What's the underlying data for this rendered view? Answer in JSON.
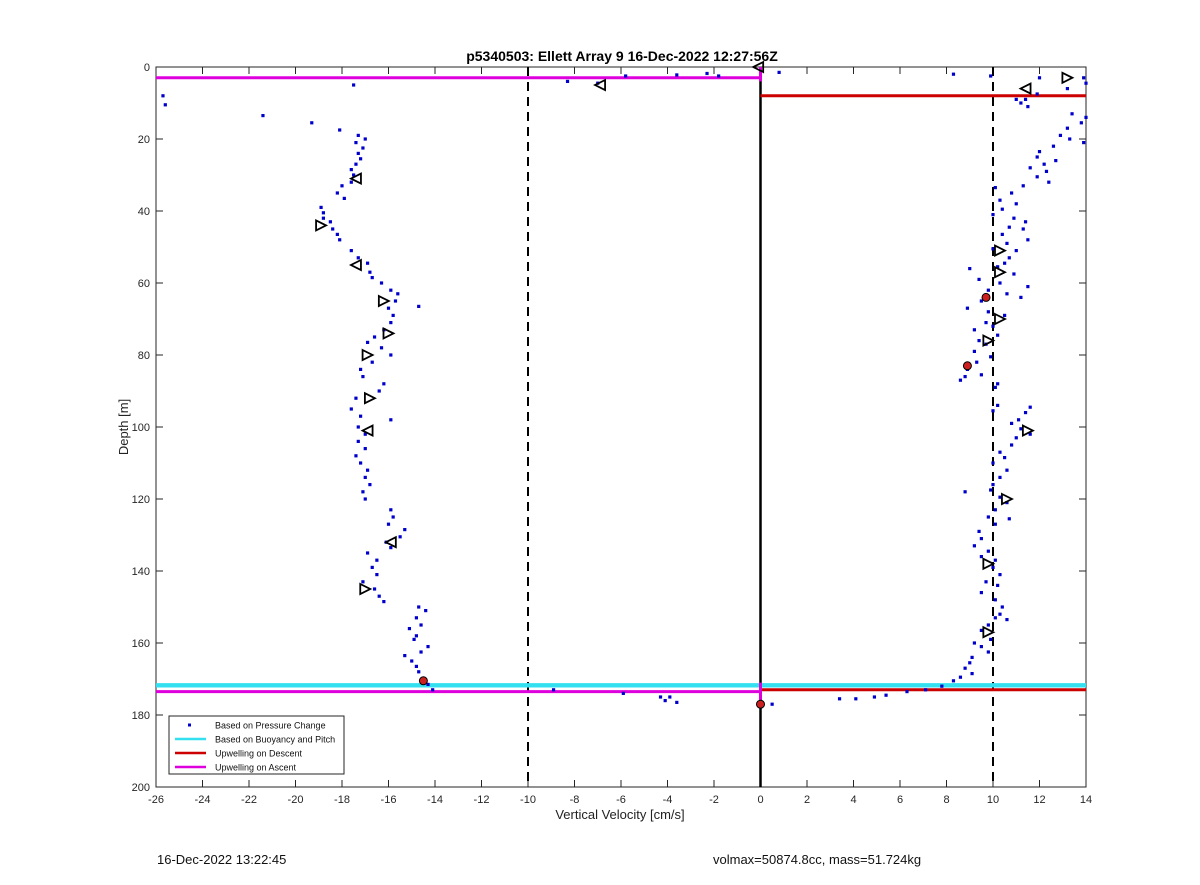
{
  "chart_data": {
    "type": "scatter",
    "title": "p5340503: Ellett Array 9 16-Dec-2022 12:27:56Z",
    "xlabel": "Vertical Velocity [cm/s]",
    "ylabel": "Depth [m]",
    "xlim": [
      -26,
      14
    ],
    "ylim": [
      0,
      200
    ],
    "y_reversed": true,
    "grid": false,
    "legend_location": "bottom-left",
    "x_ticks": [
      -26,
      -24,
      -22,
      -20,
      -18,
      -16,
      -14,
      -12,
      -10,
      -8,
      -6,
      -4,
      -2,
      0,
      2,
      4,
      6,
      8,
      10,
      12,
      14
    ],
    "y_ticks": [
      0,
      20,
      40,
      60,
      80,
      100,
      120,
      140,
      160,
      180,
      200
    ],
    "legend": [
      {
        "label": "Based on Pressure Change",
        "color": "#0000cc",
        "kind": "point"
      },
      {
        "label": "Based on Buoyancy and Pitch",
        "color": "#33e0f0",
        "kind": "line"
      },
      {
        "label": "Upwelling on Descent",
        "color": "#cc0000",
        "kind": "line"
      },
      {
        "label": "Upwelling on Ascent",
        "color": "#dd00dd",
        "kind": "line"
      }
    ],
    "reference_lines": [
      {
        "x": -10,
        "style": "dashed",
        "color": "#000000"
      },
      {
        "x": 10,
        "style": "dashed",
        "color": "#000000"
      },
      {
        "x": 0,
        "style": "solid",
        "color": "#000000"
      }
    ],
    "buoyancy_pitch_depths": [
      171.5,
      172.0
    ],
    "upwelling_descent": [
      {
        "depth": 8,
        "x_from": 0,
        "x_to": 14
      },
      {
        "depth": 173,
        "x_from": 0,
        "x_to": 14
      }
    ],
    "upwelling_ascent": [
      {
        "depth": 3,
        "x_from": -26,
        "x_to": 0
      },
      {
        "depth": 173.5,
        "x_from": -26,
        "x_to": 0
      }
    ],
    "series": [
      {
        "name": "Based on Pressure Change",
        "color": "#0000cc",
        "points": [
          [
            -25.7,
            8
          ],
          [
            -25.6,
            10.5
          ],
          [
            -21.4,
            13.5
          ],
          [
            -19.3,
            15.5
          ],
          [
            -17.5,
            5
          ],
          [
            -18.1,
            17.5
          ],
          [
            -17.3,
            19
          ],
          [
            -17.0,
            20
          ],
          [
            -17.4,
            21
          ],
          [
            -17.1,
            22.5
          ],
          [
            -17.3,
            24
          ],
          [
            -17.2,
            25.5
          ],
          [
            -17.4,
            27
          ],
          [
            -17.6,
            28.5
          ],
          [
            -17.5,
            30
          ],
          [
            -17.6,
            32
          ],
          [
            -18.0,
            33
          ],
          [
            -18.2,
            35
          ],
          [
            -17.9,
            36.5
          ],
          [
            -18.9,
            39
          ],
          [
            -18.8,
            40.5
          ],
          [
            -18.8,
            42
          ],
          [
            -18.5,
            43
          ],
          [
            -18.4,
            45
          ],
          [
            -18.2,
            46.5
          ],
          [
            -18.1,
            48
          ],
          [
            -17.6,
            51
          ],
          [
            -17.3,
            53
          ],
          [
            -16.9,
            54.5
          ],
          [
            -16.8,
            57
          ],
          [
            -16.7,
            58.5
          ],
          [
            -16.3,
            60
          ],
          [
            -15.9,
            62
          ],
          [
            -15.6,
            63
          ],
          [
            -15.7,
            65
          ],
          [
            -16.0,
            67
          ],
          [
            -14.7,
            66.5
          ],
          [
            -15.8,
            69
          ],
          [
            -15.9,
            71
          ],
          [
            -16.2,
            73
          ],
          [
            -16.6,
            75
          ],
          [
            -16.9,
            76.5
          ],
          [
            -16.3,
            78
          ],
          [
            -15.9,
            80
          ],
          [
            -16.7,
            82
          ],
          [
            -17.2,
            84
          ],
          [
            -17.1,
            86
          ],
          [
            -16.2,
            88
          ],
          [
            -16.4,
            90
          ],
          [
            -17.4,
            92
          ],
          [
            -17.6,
            95
          ],
          [
            -17.2,
            97
          ],
          [
            -15.9,
            98
          ],
          [
            -17.3,
            100
          ],
          [
            -17.0,
            102
          ],
          [
            -17.3,
            104
          ],
          [
            -17.0,
            106
          ],
          [
            -17.4,
            108
          ],
          [
            -17.2,
            110
          ],
          [
            -16.9,
            112
          ],
          [
            -17.0,
            114
          ],
          [
            -16.8,
            116
          ],
          [
            -17.1,
            118
          ],
          [
            -17.0,
            120
          ],
          [
            -15.9,
            123
          ],
          [
            -15.8,
            125
          ],
          [
            -16.0,
            127
          ],
          [
            -15.3,
            128.5
          ],
          [
            -15.5,
            130.5
          ],
          [
            -16.1,
            132
          ],
          [
            -15.9,
            133.5
          ],
          [
            -16.9,
            135
          ],
          [
            -16.5,
            137
          ],
          [
            -16.7,
            139
          ],
          [
            -16.5,
            141
          ],
          [
            -17.1,
            143
          ],
          [
            -16.6,
            145
          ],
          [
            -16.4,
            147
          ],
          [
            -16.2,
            148.5
          ],
          [
            -14.7,
            150
          ],
          [
            -14.4,
            151
          ],
          [
            -14.8,
            153
          ],
          [
            -14.6,
            155
          ],
          [
            -15.1,
            156
          ],
          [
            -14.8,
            158
          ],
          [
            -14.9,
            159
          ],
          [
            -14.3,
            161
          ],
          [
            -14.6,
            162.5
          ],
          [
            -15.3,
            163.5
          ],
          [
            -15.0,
            165
          ],
          [
            -14.8,
            166.5
          ],
          [
            -14.7,
            168
          ],
          [
            -14.5,
            170
          ],
          [
            -14.3,
            171.5
          ],
          [
            -14.1,
            173
          ],
          [
            -8.3,
            4
          ],
          [
            -7.0,
            4.5
          ],
          [
            -5.8,
            2.5
          ],
          [
            -3.6,
            2.2
          ],
          [
            -2.3,
            1.8
          ],
          [
            -1.8,
            2.5
          ],
          [
            0.8,
            1.5
          ],
          [
            8.3,
            2
          ],
          [
            9.9,
            2.5
          ],
          [
            12.0,
            3
          ],
          [
            13.9,
            3
          ],
          [
            14.0,
            4.5
          ],
          [
            13.2,
            6
          ],
          [
            11.9,
            7.5
          ],
          [
            11.4,
            9
          ],
          [
            11.0,
            9
          ],
          [
            11.2,
            10
          ],
          [
            11.5,
            11
          ],
          [
            13.4,
            13
          ],
          [
            14.0,
            14
          ],
          [
            13.8,
            15.5
          ],
          [
            13.2,
            17
          ],
          [
            12.9,
            19
          ],
          [
            13.3,
            20
          ],
          [
            13.9,
            21
          ],
          [
            12.6,
            22
          ],
          [
            12.0,
            23.5
          ],
          [
            11.9,
            25
          ],
          [
            12.7,
            26
          ],
          [
            12.2,
            27
          ],
          [
            11.6,
            28
          ],
          [
            12.3,
            29
          ],
          [
            11.9,
            30.5
          ],
          [
            12.4,
            32
          ],
          [
            11.3,
            33
          ],
          [
            10.1,
            33.5
          ],
          [
            10.8,
            35
          ],
          [
            10.3,
            37
          ],
          [
            11.0,
            38
          ],
          [
            10.4,
            39.5
          ],
          [
            10.0,
            41
          ],
          [
            10.9,
            42
          ],
          [
            11.4,
            43
          ],
          [
            10.7,
            44.5
          ],
          [
            11.3,
            45
          ],
          [
            10.4,
            46.5
          ],
          [
            11.5,
            48
          ],
          [
            10.6,
            49
          ],
          [
            10.0,
            50.5
          ],
          [
            11.0,
            51
          ],
          [
            10.7,
            53
          ],
          [
            10.5,
            54.5
          ],
          [
            10.2,
            55.5
          ],
          [
            9.0,
            56
          ],
          [
            10.9,
            57.5
          ],
          [
            9.4,
            59
          ],
          [
            10.3,
            60
          ],
          [
            11.5,
            61
          ],
          [
            9.8,
            62
          ],
          [
            10.6,
            63
          ],
          [
            11.2,
            64
          ],
          [
            9.5,
            65
          ],
          [
            8.9,
            67
          ],
          [
            9.8,
            68
          ],
          [
            10.5,
            69
          ],
          [
            9.7,
            71
          ],
          [
            10.0,
            72
          ],
          [
            9.2,
            73
          ],
          [
            10.2,
            74.5
          ],
          [
            9.4,
            76
          ],
          [
            9.7,
            77
          ],
          [
            9.2,
            79
          ],
          [
            9.9,
            80.5
          ],
          [
            9.3,
            82
          ],
          [
            8.9,
            84
          ],
          [
            8.8,
            86
          ],
          [
            8.6,
            87
          ],
          [
            9.5,
            85.5
          ],
          [
            10.2,
            88
          ],
          [
            10.1,
            89
          ],
          [
            10.2,
            94
          ],
          [
            10.0,
            95.5
          ],
          [
            11.6,
            94.5
          ],
          [
            11.4,
            96
          ],
          [
            11.1,
            98
          ],
          [
            10.8,
            99
          ],
          [
            11.2,
            100.5
          ],
          [
            11.6,
            102
          ],
          [
            11.0,
            103
          ],
          [
            10.8,
            105
          ],
          [
            10.3,
            107
          ],
          [
            10.5,
            108.5
          ],
          [
            10.0,
            110
          ],
          [
            10.6,
            112
          ],
          [
            10.3,
            114
          ],
          [
            10.0,
            116
          ],
          [
            9.9,
            117.5
          ],
          [
            8.8,
            118
          ],
          [
            10.3,
            119.5
          ],
          [
            10.6,
            121
          ],
          [
            10.1,
            123
          ],
          [
            9.8,
            125
          ],
          [
            10.7,
            125.5
          ],
          [
            10.1,
            127
          ],
          [
            9.4,
            129
          ],
          [
            9.5,
            131
          ],
          [
            9.2,
            133
          ],
          [
            9.8,
            134.5
          ],
          [
            9.5,
            136
          ],
          [
            10.1,
            137
          ],
          [
            10.0,
            139
          ],
          [
            10.3,
            141
          ],
          [
            9.7,
            143
          ],
          [
            10.2,
            144
          ],
          [
            9.5,
            146
          ],
          [
            10.1,
            148
          ],
          [
            10.4,
            150
          ],
          [
            10.3,
            152
          ],
          [
            10.1,
            153
          ],
          [
            10.6,
            153.5
          ],
          [
            9.8,
            155
          ],
          [
            9.5,
            156.5
          ],
          [
            9.9,
            159
          ],
          [
            9.2,
            160
          ],
          [
            9.5,
            161
          ],
          [
            9.8,
            162.5
          ],
          [
            9.1,
            164
          ],
          [
            9.0,
            165.5
          ],
          [
            8.8,
            167
          ],
          [
            9.1,
            168.5
          ],
          [
            8.6,
            169.5
          ],
          [
            8.3,
            170.5
          ],
          [
            7.8,
            172
          ],
          [
            7.1,
            173
          ],
          [
            6.3,
            173.5
          ],
          [
            5.4,
            174.5
          ],
          [
            4.9,
            175
          ],
          [
            4.1,
            175.5
          ],
          [
            3.4,
            175.5
          ],
          [
            -8.9,
            173
          ],
          [
            -5.9,
            174
          ],
          [
            -4.3,
            175
          ],
          [
            -4.1,
            176
          ],
          [
            -3.9,
            175
          ],
          [
            -3.6,
            176.5
          ],
          [
            0.5,
            177
          ]
        ]
      }
    ],
    "markers": {
      "triangle_right": [
        [
          -16.8,
          92
        ],
        [
          -16.0,
          74
        ],
        [
          -16.9,
          80
        ],
        [
          -16.2,
          65
        ],
        [
          -17.0,
          145
        ],
        [
          -18.9,
          44
        ],
        [
          10.3,
          51
        ],
        [
          10.3,
          57
        ],
        [
          10.3,
          70
        ],
        [
          9.8,
          76
        ],
        [
          11.5,
          101
        ],
        [
          10.6,
          120
        ],
        [
          13.2,
          3
        ],
        [
          9.8,
          138
        ],
        [
          9.8,
          157
        ]
      ],
      "triangle_left": [
        [
          -6.9,
          5
        ],
        [
          -17.4,
          31
        ],
        [
          -17.4,
          55
        ],
        [
          -16.9,
          101
        ],
        [
          -15.9,
          132
        ],
        [
          11.4,
          6
        ],
        [
          -0.1,
          0
        ]
      ],
      "red_circles": [
        [
          9.7,
          64
        ],
        [
          8.9,
          83
        ],
        [
          -14.5,
          170.5
        ],
        [
          0,
          177
        ]
      ]
    }
  },
  "footer": {
    "timestamp": "16-Dec-2022 13:22:45",
    "stats": "volmax=50874.8cc, mass=51.724kg"
  }
}
